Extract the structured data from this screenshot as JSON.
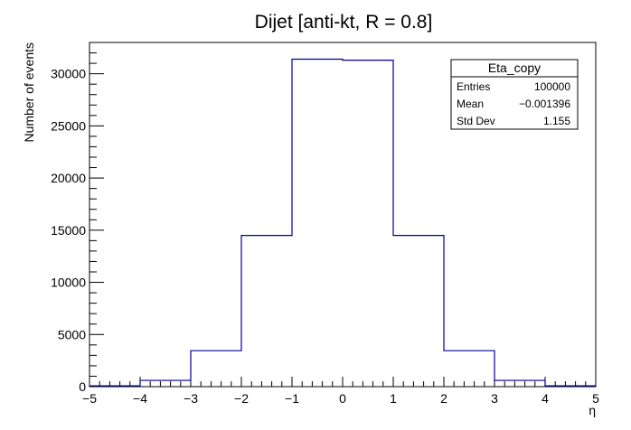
{
  "chart_data": {
    "type": "histogram",
    "title": "Dijet [anti-kt, R = 0.8]",
    "xlabel": "η",
    "ylabel": "Number of events",
    "xlim": [
      -5,
      5
    ],
    "ylim": [
      0,
      33000
    ],
    "xticks": [
      "−5",
      "−4",
      "−3",
      "−2",
      "−1",
      "0",
      "1",
      "2",
      "3",
      "4",
      "5"
    ],
    "yticks": [
      "0",
      "5000",
      "10000",
      "15000",
      "20000",
      "25000",
      "30000"
    ],
    "bins": {
      "edges": [
        -5,
        -4,
        -3,
        -2,
        -1,
        0,
        1,
        2,
        3,
        4,
        5
      ],
      "values": [
        80,
        600,
        3450,
        14500,
        31400,
        31300,
        14500,
        3450,
        600,
        80
      ]
    },
    "line_color": "#000099",
    "grid": false,
    "stats_box": {
      "title": "Eta_copy",
      "rows": [
        {
          "label": "Entries",
          "value": "100000"
        },
        {
          "label": "Mean",
          "value": "−0.001396"
        },
        {
          "label": "Std Dev",
          "value": "1.155"
        }
      ],
      "placement": "top-right"
    }
  }
}
